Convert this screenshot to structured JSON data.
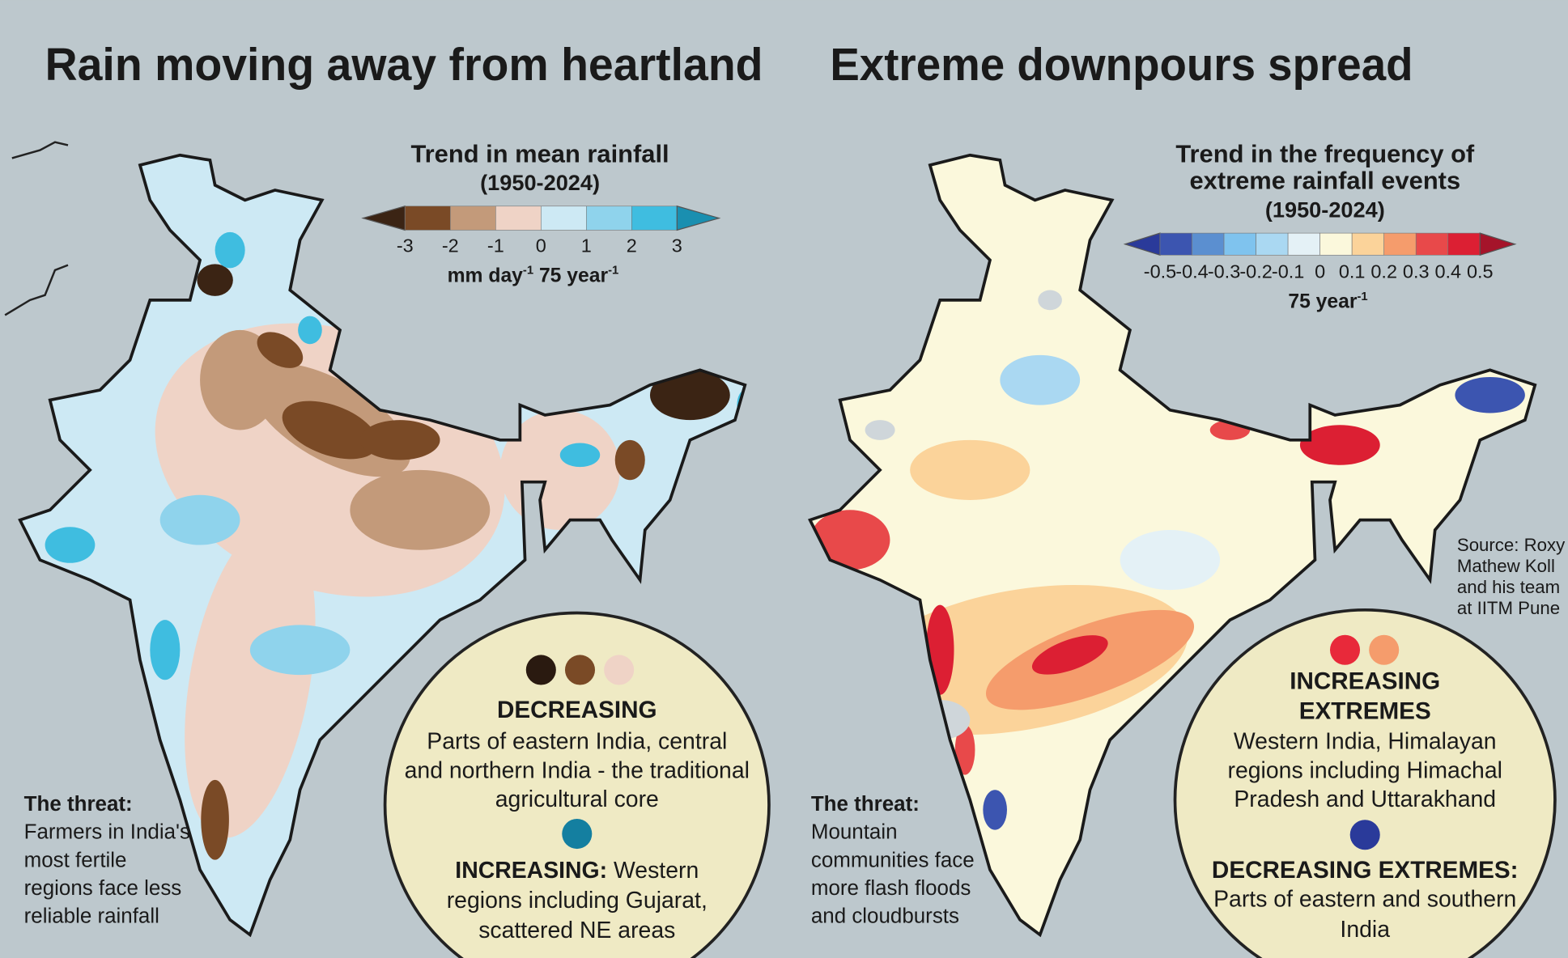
{
  "left": {
    "title": "Rain moving away from heartland",
    "legend": {
      "title": "Trend in mean rainfall",
      "period": "(1950-2024)",
      "ticks": [
        -3,
        -2,
        -1,
        0,
        1,
        2,
        3
      ],
      "colors": [
        "#3b2414",
        "#7a4a26",
        "#c39a7a",
        "#efd3c6",
        "#cde9f4",
        "#8fd3ec",
        "#3fbde0",
        "#1a8fb0"
      ],
      "unit": [
        "mm day",
        "-1",
        " 75 year",
        "-1"
      ]
    },
    "threat": {
      "label": "The threat:",
      "lines": [
        "Farmers in India's",
        "most fertile",
        "regions face less",
        "reliable rainfall"
      ]
    },
    "callout": {
      "heading": "DECREASING",
      "lines": [
        "Parts of eastern India, central",
        "and northern India - the traditional",
        "agricultural core"
      ],
      "heading2": "INCREASING:",
      "lines2": [
        " Western",
        "regions including Gujarat,",
        "scattered NE areas"
      ]
    }
  },
  "right": {
    "title": "Extreme downpours spread",
    "legend": {
      "title": [
        "Trend in the frequency of",
        "extreme rainfall events"
      ],
      "period": "(1950-2024)",
      "ticks": [
        -0.5,
        -0.4,
        -0.3,
        -0.2,
        -0.1,
        0,
        0.1,
        0.2,
        0.3,
        0.4,
        0.5
      ],
      "colors": [
        "#2a3a9a",
        "#3c55b0",
        "#5b8fd0",
        "#7fc3ee",
        "#aad8f2",
        "#e4f1f6",
        "#fbf8dc",
        "#fbd39a",
        "#f59c6c",
        "#e8494a",
        "#dc1f33",
        "#a5142a"
      ],
      "unit": [
        "75 year",
        "-1"
      ]
    },
    "threat": {
      "label": "The threat:",
      "lines": [
        "Mountain",
        "communities face",
        "more flash floods",
        "and cloudbursts"
      ]
    },
    "callout": {
      "heading": [
        "INCREASING",
        "EXTREMES"
      ],
      "lines": [
        "Western India, Himalayan",
        "regions including Himachal",
        "Pradesh and Uttarakhand"
      ],
      "heading2": "DECREASING EXTREMES:",
      "lines2": [
        "Parts of eastern and southern",
        "India"
      ]
    }
  },
  "source": [
    "Source: Roxy",
    "Mathew Koll",
    "and his team",
    "at IITM Pune"
  ]
}
